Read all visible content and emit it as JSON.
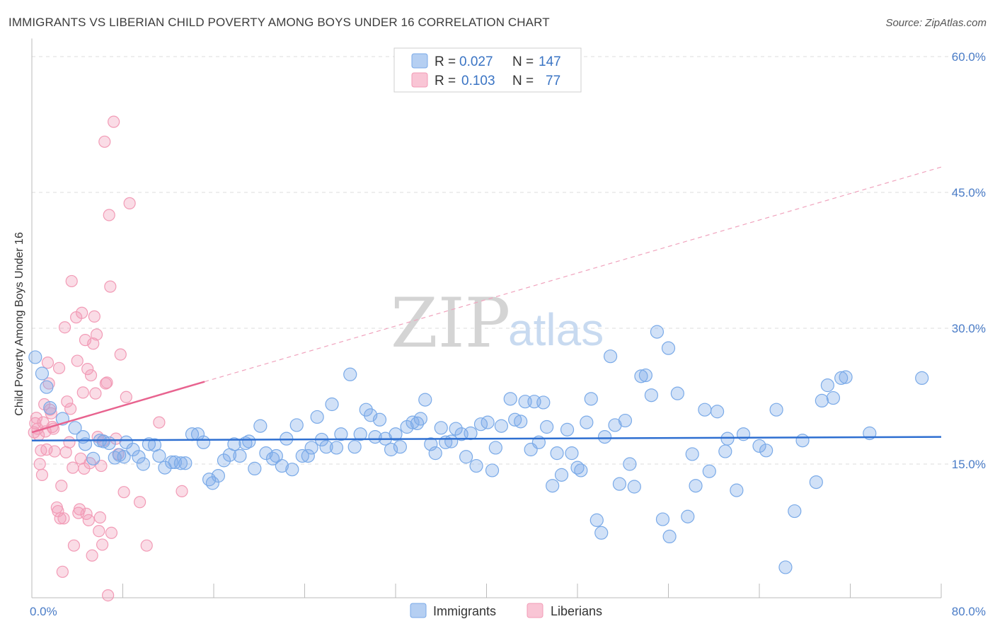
{
  "title": "IMMIGRANTS VS LIBERIAN CHILD POVERTY AMONG BOYS UNDER 16 CORRELATION CHART",
  "source": "Source: ZipAtlas.com",
  "watermark": {
    "zip": "ZIP",
    "atlas": "atlas"
  },
  "colors": {
    "immigrants": "#7aaae8",
    "liberians": "#f29bb6",
    "immigrants_line": "#2e6fd1",
    "liberians_line": "#e8638f",
    "tick": "#4a7cc7"
  },
  "legend": {
    "rows": [
      {
        "r_label": "R = ",
        "r_value": "0.027",
        "n_label": "N = ",
        "n_value": "147"
      },
      {
        "r_label": "R = ",
        "r_value": "0.103",
        "n_label": "N = ",
        "n_value": "77"
      }
    ]
  },
  "bottom_legend": [
    "Immigrants",
    "Liberians"
  ],
  "chart_data": {
    "type": "scatter",
    "title": "IMMIGRANTS VS LIBERIAN CHILD POVERTY AMONG BOYS UNDER 16 CORRELATION CHART",
    "xlabel": "",
    "ylabel": "Child Poverty Among Boys Under 16",
    "xlim": [
      0,
      80
    ],
    "ylim": [
      0,
      62
    ],
    "x_tick_labels": [
      "0.0%",
      "80.0%"
    ],
    "y_ticks": [
      15,
      30,
      45,
      60
    ],
    "y_tick_labels": [
      "15.0%",
      "30.0%",
      "45.0%",
      "60.0%"
    ],
    "grid": true,
    "legend_position": "top-center",
    "series": [
      {
        "name": "Immigrants",
        "r": 0.027,
        "n": 147,
        "trend": {
          "x": [
            0,
            80
          ],
          "y": [
            17.6,
            18.0
          ]
        },
        "points": [
          [
            0.3,
            26.8
          ],
          [
            0.9,
            25.0
          ],
          [
            1.3,
            23.5
          ],
          [
            1.6,
            21.2
          ],
          [
            2.7,
            20.0
          ],
          [
            3.8,
            19.0
          ],
          [
            4.5,
            18.0
          ],
          [
            4.7,
            17.2
          ],
          [
            5.4,
            15.6
          ],
          [
            6.0,
            17.6
          ],
          [
            6.3,
            17.5
          ],
          [
            6.8,
            17.3
          ],
          [
            7.3,
            15.7
          ],
          [
            7.7,
            16.0
          ],
          [
            8.1,
            15.8
          ],
          [
            8.3,
            17.4
          ],
          [
            8.9,
            16.6
          ],
          [
            9.4,
            15.8
          ],
          [
            9.8,
            15.0
          ],
          [
            10.3,
            17.2
          ],
          [
            10.8,
            17.1
          ],
          [
            11.2,
            15.9
          ],
          [
            11.7,
            14.6
          ],
          [
            12.3,
            15.2
          ],
          [
            12.6,
            15.2
          ],
          [
            13.1,
            15.1
          ],
          [
            13.5,
            15.1
          ],
          [
            14.1,
            18.3
          ],
          [
            14.6,
            18.3
          ],
          [
            15.1,
            17.4
          ],
          [
            15.6,
            13.3
          ],
          [
            15.9,
            12.9
          ],
          [
            16.4,
            13.7
          ],
          [
            16.9,
            15.4
          ],
          [
            17.4,
            16.0
          ],
          [
            17.8,
            17.2
          ],
          [
            18.3,
            15.9
          ],
          [
            18.8,
            17.3
          ],
          [
            19.1,
            17.5
          ],
          [
            19.6,
            14.5
          ],
          [
            20.1,
            19.2
          ],
          [
            20.6,
            16.2
          ],
          [
            21.2,
            15.6
          ],
          [
            21.5,
            15.9
          ],
          [
            22.0,
            14.8
          ],
          [
            22.4,
            17.8
          ],
          [
            22.9,
            14.4
          ],
          [
            23.3,
            19.3
          ],
          [
            23.8,
            15.9
          ],
          [
            24.3,
            15.9
          ],
          [
            24.6,
            16.8
          ],
          [
            25.1,
            20.2
          ],
          [
            25.5,
            17.7
          ],
          [
            25.9,
            16.9
          ],
          [
            26.4,
            21.6
          ],
          [
            26.8,
            16.8
          ],
          [
            27.2,
            18.3
          ],
          [
            28.0,
            24.9
          ],
          [
            28.4,
            16.9
          ],
          [
            28.9,
            18.3
          ],
          [
            29.4,
            21.0
          ],
          [
            29.8,
            20.4
          ],
          [
            30.2,
            18.0
          ],
          [
            30.6,
            19.9
          ],
          [
            31.1,
            17.8
          ],
          [
            31.6,
            16.6
          ],
          [
            32.0,
            18.3
          ],
          [
            32.4,
            16.9
          ],
          [
            33.0,
            19.1
          ],
          [
            33.5,
            19.6
          ],
          [
            33.9,
            19.5
          ],
          [
            34.2,
            20.0
          ],
          [
            34.6,
            22.1
          ],
          [
            35.1,
            17.2
          ],
          [
            35.5,
            16.2
          ],
          [
            36.0,
            19.0
          ],
          [
            36.4,
            17.4
          ],
          [
            36.9,
            17.5
          ],
          [
            37.3,
            18.9
          ],
          [
            37.8,
            18.3
          ],
          [
            38.2,
            15.8
          ],
          [
            38.6,
            18.4
          ],
          [
            39.1,
            14.8
          ],
          [
            39.5,
            19.4
          ],
          [
            40.1,
            19.6
          ],
          [
            40.5,
            14.3
          ],
          [
            40.8,
            16.8
          ],
          [
            41.3,
            19.2
          ],
          [
            42.1,
            22.2
          ],
          [
            42.5,
            19.9
          ],
          [
            43.0,
            19.7
          ],
          [
            43.4,
            21.9
          ],
          [
            43.9,
            16.6
          ],
          [
            44.2,
            21.9
          ],
          [
            44.6,
            17.4
          ],
          [
            45.0,
            21.8
          ],
          [
            45.3,
            19.1
          ],
          [
            45.8,
            12.6
          ],
          [
            46.2,
            16.2
          ],
          [
            46.6,
            13.8
          ],
          [
            47.1,
            18.8
          ],
          [
            47.5,
            16.2
          ],
          [
            48.0,
            14.6
          ],
          [
            48.3,
            14.3
          ],
          [
            48.8,
            19.6
          ],
          [
            49.2,
            22.2
          ],
          [
            49.7,
            8.8
          ],
          [
            50.1,
            7.4
          ],
          [
            50.4,
            18.0
          ],
          [
            50.9,
            26.9
          ],
          [
            51.3,
            19.3
          ],
          [
            51.7,
            12.8
          ],
          [
            52.2,
            19.8
          ],
          [
            52.6,
            15.0
          ],
          [
            53.0,
            12.5
          ],
          [
            53.6,
            24.7
          ],
          [
            54.0,
            24.8
          ],
          [
            54.5,
            22.6
          ],
          [
            55.0,
            29.6
          ],
          [
            55.5,
            8.9
          ],
          [
            56.0,
            27.8
          ],
          [
            56.1,
            7.0
          ],
          [
            56.8,
            22.8
          ],
          [
            57.7,
            9.2
          ],
          [
            58.1,
            16.1
          ],
          [
            58.4,
            12.6
          ],
          [
            59.2,
            21.0
          ],
          [
            59.6,
            14.2
          ],
          [
            60.3,
            20.8
          ],
          [
            61.0,
            16.4
          ],
          [
            61.2,
            17.8
          ],
          [
            62.0,
            12.1
          ],
          [
            62.6,
            18.3
          ],
          [
            64.0,
            17.0
          ],
          [
            64.6,
            16.5
          ],
          [
            65.5,
            21.0
          ],
          [
            66.3,
            3.6
          ],
          [
            67.1,
            9.8
          ],
          [
            67.8,
            17.6
          ],
          [
            69.0,
            13.0
          ],
          [
            69.5,
            22.0
          ],
          [
            70.0,
            23.7
          ],
          [
            70.5,
            22.3
          ],
          [
            71.2,
            24.5
          ],
          [
            71.6,
            24.6
          ],
          [
            73.7,
            18.4
          ],
          [
            78.3,
            24.5
          ]
        ]
      },
      {
        "name": "Liberians",
        "r": 0.103,
        "n": 77,
        "trend_solid": {
          "x": [
            0,
            15.2
          ],
          "y": [
            18.5,
            24.1
          ]
        },
        "trend_dashed": {
          "x": [
            15.2,
            80
          ],
          "y": [
            24.1,
            47.8
          ]
        },
        "points": [
          [
            0.2,
            18.5
          ],
          [
            0.3,
            19.5
          ],
          [
            0.4,
            20.1
          ],
          [
            0.5,
            18.9
          ],
          [
            0.6,
            18.2
          ],
          [
            0.7,
            15.0
          ],
          [
            0.8,
            16.5
          ],
          [
            0.9,
            13.8
          ],
          [
            1.0,
            19.6
          ],
          [
            1.1,
            21.6
          ],
          [
            1.2,
            18.6
          ],
          [
            1.3,
            16.6
          ],
          [
            1.4,
            26.2
          ],
          [
            1.5,
            23.9
          ],
          [
            1.6,
            21.0
          ],
          [
            1.7,
            20.6
          ],
          [
            1.8,
            19.1
          ],
          [
            1.9,
            18.9
          ],
          [
            2.0,
            16.4
          ],
          [
            2.2,
            10.2
          ],
          [
            2.3,
            9.8
          ],
          [
            2.4,
            25.6
          ],
          [
            2.5,
            9.0
          ],
          [
            2.6,
            12.6
          ],
          [
            2.7,
            3.1
          ],
          [
            2.8,
            9.0
          ],
          [
            2.9,
            30.1
          ],
          [
            3.0,
            16.3
          ],
          [
            3.1,
            21.9
          ],
          [
            3.3,
            17.4
          ],
          [
            3.4,
            21.1
          ],
          [
            3.5,
            35.2
          ],
          [
            3.6,
            14.6
          ],
          [
            3.7,
            6.0
          ],
          [
            3.9,
            31.2
          ],
          [
            4.0,
            26.4
          ],
          [
            4.1,
            9.6
          ],
          [
            4.2,
            10.0
          ],
          [
            4.3,
            15.6
          ],
          [
            4.4,
            31.7
          ],
          [
            4.5,
            22.9
          ],
          [
            4.6,
            14.5
          ],
          [
            4.7,
            28.7
          ],
          [
            4.8,
            9.5
          ],
          [
            4.9,
            25.5
          ],
          [
            5.0,
            8.8
          ],
          [
            5.1,
            15.1
          ],
          [
            5.2,
            24.8
          ],
          [
            5.3,
            4.9
          ],
          [
            5.4,
            28.3
          ],
          [
            5.5,
            31.3
          ],
          [
            5.6,
            22.8
          ],
          [
            5.7,
            29.3
          ],
          [
            5.8,
            18.0
          ],
          [
            5.9,
            7.6
          ],
          [
            6.0,
            9.1
          ],
          [
            6.1,
            14.8
          ],
          [
            6.2,
            6.1
          ],
          [
            6.3,
            17.6
          ],
          [
            6.4,
            50.6
          ],
          [
            6.5,
            23.9
          ],
          [
            6.6,
            24.0
          ],
          [
            6.7,
            0.5
          ],
          [
            6.8,
            42.5
          ],
          [
            6.9,
            34.6
          ],
          [
            7.0,
            7.4
          ],
          [
            7.2,
            52.8
          ],
          [
            7.4,
            17.8
          ],
          [
            7.6,
            16.1
          ],
          [
            7.8,
            27.1
          ],
          [
            8.1,
            11.9
          ],
          [
            8.3,
            22.4
          ],
          [
            8.6,
            43.8
          ],
          [
            9.5,
            10.8
          ],
          [
            10.1,
            6.0
          ],
          [
            11.2,
            19.6
          ],
          [
            13.2,
            12.0
          ]
        ]
      }
    ]
  }
}
